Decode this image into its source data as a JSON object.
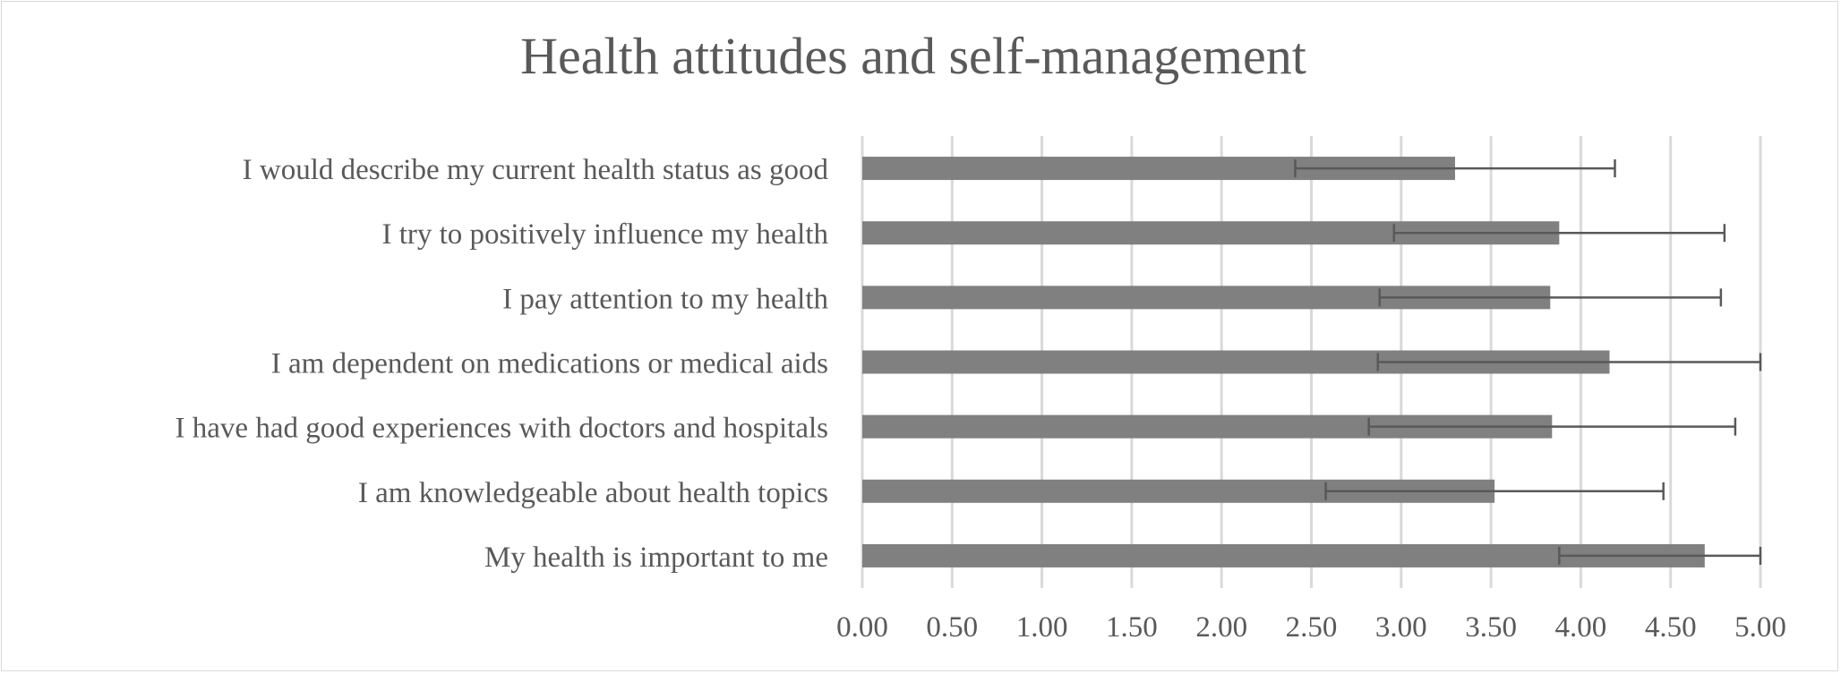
{
  "chart_data": {
    "type": "bar",
    "orientation": "horizontal",
    "title": "Health attitudes and self-management",
    "xlabel": "",
    "ylabel": "",
    "xlim": [
      0,
      5
    ],
    "x_ticks": [
      "0.00",
      "0.50",
      "1.00",
      "1.50",
      "2.00",
      "2.50",
      "3.00",
      "3.50",
      "4.00",
      "4.50",
      "5.00"
    ],
    "x_tick_values": [
      0,
      0.5,
      1,
      1.5,
      2,
      2.5,
      3,
      3.5,
      4,
      4.5,
      5
    ],
    "grid": "vertical",
    "legend": "none",
    "categories": [
      "I would describe my current health status as good",
      "I try to positively influence my health",
      "I pay attention to my health",
      "I am dependent on medications or medical aids",
      "I have had good experiences with doctors and hospitals",
      "I am knowledgeable about health topics",
      "My health is important to me"
    ],
    "values": [
      3.3,
      3.88,
      3.83,
      4.16,
      3.84,
      3.52,
      4.69
    ],
    "error": [
      0.89,
      0.92,
      0.95,
      1.29,
      1.02,
      0.94,
      0.81
    ],
    "colors": {
      "bar": "#808080",
      "error_bar": "#595959",
      "grid": "#d9d9d9",
      "text": "#595959"
    }
  }
}
